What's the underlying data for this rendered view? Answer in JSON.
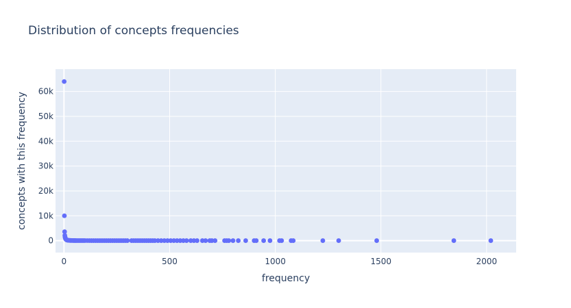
{
  "chart_data": {
    "type": "scatter",
    "title": "Distribution of concepts frequencies",
    "xlabel": "frequency",
    "ylabel": "concepts with this frequency",
    "xlim": [
      -40,
      2140
    ],
    "ylim": [
      -4800,
      69000
    ],
    "x_ticks": [
      0,
      500,
      1000,
      1500,
      2000
    ],
    "x_tick_labels": [
      "0",
      "500",
      "1000",
      "1500",
      "2000"
    ],
    "y_ticks": [
      0,
      10000,
      20000,
      30000,
      40000,
      50000,
      60000
    ],
    "y_tick_labels": [
      "0",
      "10k",
      "20k",
      "30k",
      "40k",
      "50k",
      "60k"
    ],
    "grid": true,
    "legend": "none",
    "colors": {
      "marker": "#636efa",
      "plot_background": "#e5ecf6",
      "grid": "#ffffff",
      "text": "#2a3f5f"
    },
    "series": [
      {
        "points": [
          [
            1,
            64000
          ],
          [
            2,
            10000
          ],
          [
            3,
            3600
          ],
          [
            4,
            2100
          ],
          [
            5,
            1500
          ],
          [
            6,
            1100
          ],
          [
            7,
            850
          ],
          [
            8,
            700
          ],
          [
            9,
            560
          ],
          [
            10,
            460
          ],
          [
            11,
            390
          ],
          [
            12,
            330
          ],
          [
            13,
            290
          ],
          [
            14,
            250
          ],
          [
            15,
            220
          ],
          [
            16,
            200
          ],
          [
            18,
            170
          ],
          [
            20,
            140
          ],
          [
            22,
            120
          ],
          [
            24,
            105
          ],
          [
            26,
            92
          ],
          [
            28,
            82
          ],
          [
            30,
            74
          ],
          [
            33,
            64
          ],
          [
            36,
            56
          ],
          [
            40,
            48
          ],
          [
            44,
            41
          ],
          [
            48,
            36
          ],
          [
            52,
            32
          ],
          [
            56,
            28
          ],
          [
            60,
            25
          ],
          [
            65,
            22
          ],
          [
            70,
            20
          ],
          [
            75,
            18
          ],
          [
            80,
            16
          ],
          [
            85,
            14
          ],
          [
            90,
            13
          ],
          [
            95,
            12
          ],
          [
            100,
            11
          ],
          [
            110,
            10
          ],
          [
            120,
            9
          ],
          [
            130,
            8
          ],
          [
            140,
            7
          ],
          [
            150,
            6
          ],
          [
            160,
            6
          ],
          [
            170,
            5
          ],
          [
            180,
            5
          ],
          [
            190,
            4
          ],
          [
            200,
            4
          ],
          [
            210,
            4
          ],
          [
            220,
            3
          ],
          [
            230,
            3
          ],
          [
            240,
            3
          ],
          [
            250,
            3
          ],
          [
            260,
            2
          ],
          [
            270,
            2
          ],
          [
            280,
            2
          ],
          [
            290,
            2
          ],
          [
            300,
            2
          ],
          [
            320,
            2
          ],
          [
            330,
            1
          ],
          [
            340,
            1
          ],
          [
            350,
            1
          ],
          [
            360,
            1
          ],
          [
            370,
            1
          ],
          [
            380,
            1
          ],
          [
            390,
            1
          ],
          [
            400,
            1
          ],
          [
            410,
            1
          ],
          [
            420,
            1
          ],
          [
            430,
            1
          ],
          [
            445,
            1
          ],
          [
            460,
            1
          ],
          [
            475,
            1
          ],
          [
            490,
            1
          ],
          [
            505,
            1
          ],
          [
            520,
            1
          ],
          [
            535,
            1
          ],
          [
            550,
            1
          ],
          [
            565,
            1
          ],
          [
            580,
            1
          ],
          [
            600,
            1
          ],
          [
            615,
            1
          ],
          [
            630,
            1
          ],
          [
            655,
            1
          ],
          [
            670,
            1
          ],
          [
            690,
            1
          ],
          [
            700,
            1
          ],
          [
            715,
            1
          ],
          [
            760,
            1
          ],
          [
            770,
            1
          ],
          [
            780,
            1
          ],
          [
            800,
            1
          ],
          [
            825,
            1
          ],
          [
            860,
            1
          ],
          [
            900,
            1
          ],
          [
            910,
            1
          ],
          [
            945,
            1
          ],
          [
            975,
            1
          ],
          [
            1020,
            1
          ],
          [
            1030,
            1
          ],
          [
            1075,
            1
          ],
          [
            1085,
            1
          ],
          [
            1225,
            1
          ],
          [
            1300,
            1
          ],
          [
            1480,
            1
          ],
          [
            1845,
            1
          ],
          [
            2020,
            1
          ]
        ]
      }
    ]
  }
}
